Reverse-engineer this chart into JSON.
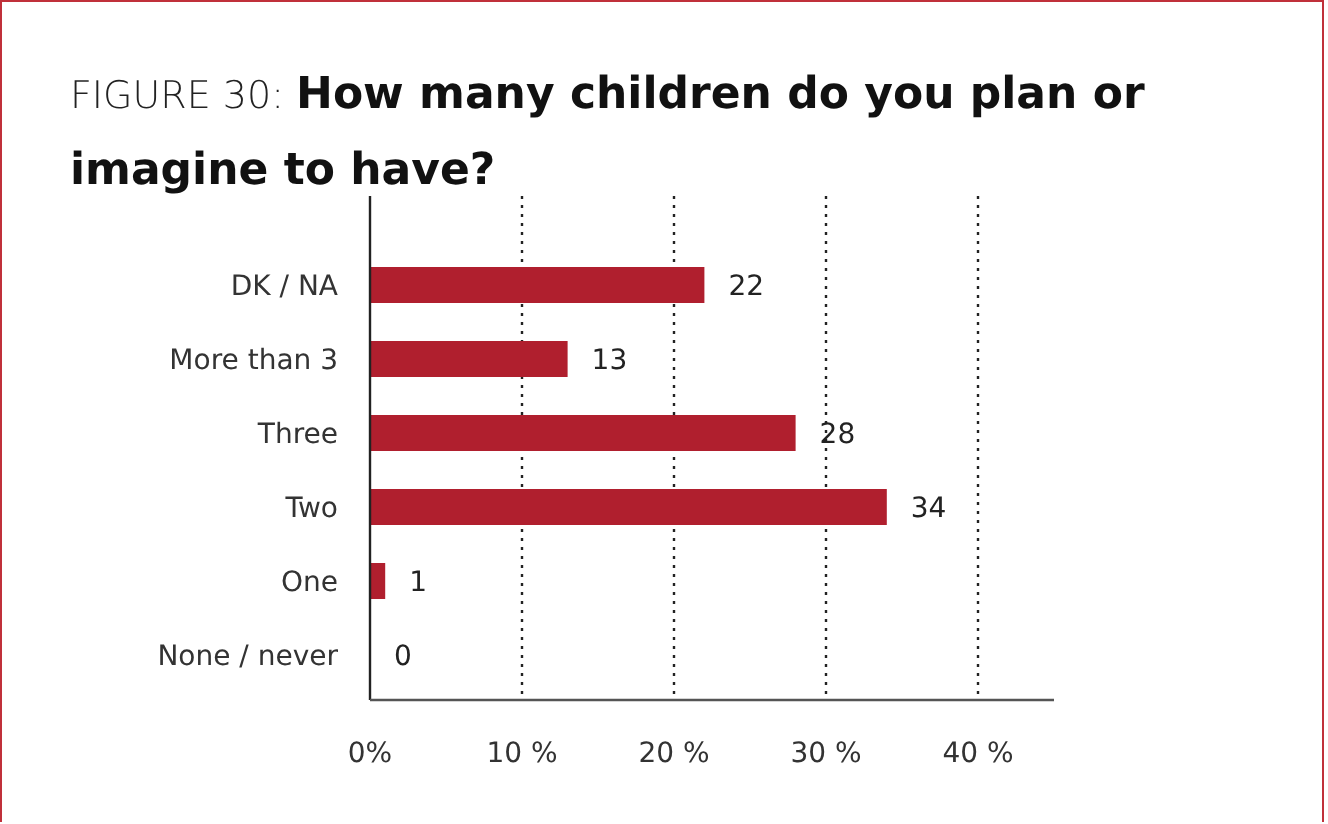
{
  "chart_data": {
    "type": "bar",
    "orientation": "horizontal",
    "subtitle": "FIGURE 30:",
    "title": "How many children do you plan or imagine to have?",
    "categories": [
      "DK / NA",
      "More than 3",
      "Three",
      "Two",
      "One",
      "None / never"
    ],
    "values": [
      22,
      13,
      28,
      34,
      1,
      0
    ],
    "color": "#b01f2e",
    "data_labels": true,
    "xlim": [
      0,
      45
    ],
    "xticks": [
      {
        "value": 0,
        "label": "0%"
      },
      {
        "value": 10,
        "label": "10 %"
      },
      {
        "value": 20,
        "label": "20 %"
      },
      {
        "value": 30,
        "label": "30 %"
      },
      {
        "value": 40,
        "label": "40 %"
      }
    ],
    "grid": "x",
    "line_style": "dotted"
  }
}
